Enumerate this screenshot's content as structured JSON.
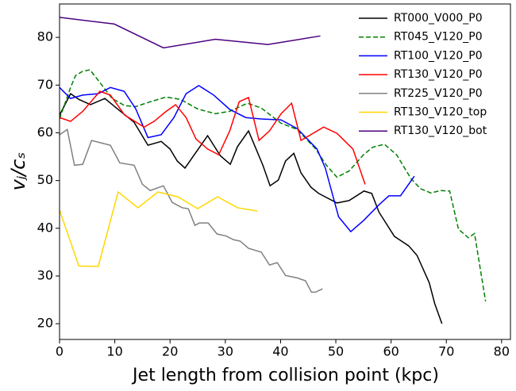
{
  "chart_data": {
    "type": "line",
    "xlabel": "Jet length from collision point (kpc)",
    "ylabel": "vⱼ/cₛ",
    "xlim": [
      0,
      81.6
    ],
    "ylim": [
      16.7,
      87.0
    ],
    "xticks": [
      0,
      10,
      20,
      30,
      40,
      50,
      60,
      70,
      80
    ],
    "yticks": [
      20,
      30,
      40,
      50,
      60,
      70,
      80
    ],
    "grid": false,
    "legend": "upper right",
    "series": [
      {
        "name": "RT000_V000_P0",
        "color": "#000000",
        "linestyle": "solid",
        "x": [
          0,
          2,
          3.5,
          5.6,
          8.2,
          10.6,
          13.5,
          16,
          18.4,
          20,
          21.3,
          22.7,
          24.2,
          26.8,
          29.1,
          30.9,
          32.2,
          34.2,
          36.8,
          38.1,
          39.6,
          40.9,
          42.4,
          43.7,
          45.5,
          46.9,
          50.2,
          52.4,
          55.1,
          56.5,
          57.8,
          60.6,
          63.2,
          64.7,
          66.9,
          67.9,
          69.2
        ],
        "values": [
          63.7,
          68.2,
          67,
          65.9,
          67.2,
          64.9,
          62.2,
          57.4,
          58.2,
          56.6,
          54.1,
          52.6,
          55.1,
          59.4,
          55.2,
          53.4,
          57.1,
          60.4,
          53.2,
          48.9,
          50.1,
          54.1,
          55.7,
          51.6,
          48.6,
          47.3,
          45.3,
          45.8,
          47.8,
          47.3,
          43.4,
          38.3,
          36.3,
          34.3,
          28.6,
          24.2,
          20
        ]
      },
      {
        "name": "RT045_V120_P0",
        "color": "#008000",
        "linestyle": "dashed",
        "x": [
          0,
          2,
          2.9,
          4.2,
          5.5,
          7,
          9.5,
          11.8,
          13.8,
          16.4,
          19.3,
          21.9,
          25,
          28.2,
          30.8,
          34,
          36.5,
          40.1,
          43,
          46.3,
          48.3,
          50.2,
          52.4,
          55,
          56.7,
          58.8,
          61,
          63.6,
          65.3,
          67.2,
          68.9,
          70.6,
          72.2,
          74,
          75.1,
          77.1
        ],
        "values": [
          62.9,
          69.5,
          72,
          72.9,
          73.2,
          71,
          67.2,
          65.7,
          65.5,
          66.5,
          67.5,
          67,
          65,
          64,
          64.5,
          66.2,
          65.2,
          62,
          60.7,
          56.7,
          53.2,
          50.7,
          52,
          55.4,
          57,
          57.6,
          55.4,
          50.4,
          48.3,
          47.4,
          47.9,
          47.8,
          39.8,
          38,
          38.9,
          24.7
        ]
      },
      {
        "name": "RT100_V120_P0",
        "color": "#0000ff",
        "linestyle": "solid",
        "x": [
          0,
          2,
          4.2,
          7,
          9.2,
          11.7,
          13.8,
          16,
          18.4,
          20.7,
          22.9,
          25.2,
          27.9,
          30.8,
          33.7,
          36.5,
          40.1,
          43,
          46.6,
          48.1,
          50.5,
          52.7,
          55,
          57.8,
          59.6,
          61.7,
          64.2
        ],
        "values": [
          69.5,
          67.2,
          67.9,
          68.2,
          69.5,
          68.7,
          65,
          59,
          59.6,
          63.2,
          68.2,
          69.9,
          67.9,
          64.9,
          63.2,
          62.9,
          62.7,
          60.9,
          56.6,
          52.6,
          42.4,
          39.3,
          41.6,
          44.9,
          46.8,
          46.8,
          50.9
        ]
      },
      {
        "name": "RT130_V120_P0",
        "color": "#ff0000",
        "linestyle": "solid",
        "x": [
          0,
          2,
          4.2,
          7.3,
          9.2,
          11.8,
          15.3,
          17.1,
          19.3,
          21,
          22.9,
          24.7,
          26.8,
          28.8,
          30.8,
          32.5,
          34.2,
          36.1,
          38,
          40.1,
          42,
          43.7,
          47.8,
          50.2,
          53.1,
          55.3
        ],
        "values": [
          63.2,
          62.4,
          64.5,
          68.7,
          67.9,
          63.7,
          61.2,
          62.4,
          64.5,
          65.9,
          63.2,
          58.7,
          56.6,
          55.4,
          60.4,
          66.5,
          67.4,
          58.4,
          60.4,
          64,
          66.2,
          58.4,
          61.2,
          59.9,
          56.6,
          49.2
        ]
      },
      {
        "name": "RT225_V120_P0",
        "color": "#808080",
        "linestyle": "solid",
        "x": [
          0,
          1.4,
          2.7,
          4.2,
          5.8,
          7.5,
          9.2,
          10.9,
          13.5,
          15,
          16.4,
          18.8,
          20.4,
          22.2,
          23.3,
          24.5,
          25.3,
          26.9,
          28.5,
          30.1,
          31.5,
          32.7,
          34.2,
          36.5,
          38,
          39.4,
          40.9,
          43,
          44.5,
          45.6,
          46.3,
          47.6
        ],
        "values": [
          59.6,
          60.7,
          53.2,
          53.4,
          58.4,
          57.9,
          57.4,
          53.7,
          53.2,
          49.2,
          47.9,
          48.9,
          45.4,
          44.3,
          44.1,
          40.6,
          41.1,
          41.1,
          38.8,
          38.4,
          37.6,
          37.3,
          35.8,
          35,
          32.3,
          32.8,
          30.1,
          29.6,
          29,
          26.6,
          26.6,
          27.3
        ]
      },
      {
        "name": "RT130_V120_top",
        "color": "#ffd700",
        "linestyle": "solid",
        "x": [
          0,
          3.5,
          7,
          10.6,
          14.2,
          17.8,
          21.4,
          25,
          28.6,
          32.2,
          35.8
        ],
        "values": [
          43.8,
          32.1,
          32,
          47.6,
          44.3,
          47.6,
          46.6,
          44.1,
          46.6,
          44.3,
          43.6
        ]
      },
      {
        "name": "RT130_V120_bot",
        "color": "#4b0082",
        "linestyle": "solid",
        "x": [
          0,
          9.9,
          18.8,
          28.2,
          37.7,
          47.2
        ],
        "values": [
          84.2,
          82.8,
          77.8,
          79.6,
          78.5,
          80.3
        ]
      }
    ]
  }
}
